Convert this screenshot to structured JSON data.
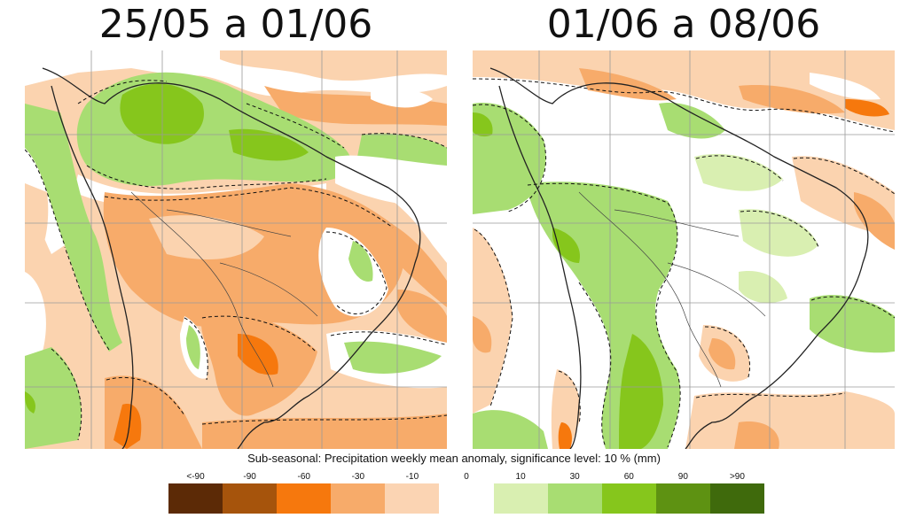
{
  "panels": [
    {
      "title": "25/05 a 01/06"
    },
    {
      "title": "01/06 a 08/06"
    }
  ],
  "legend": {
    "title": "Sub-seasonal: Precipitation weekly mean anomaly, significance level: 10 % (mm)",
    "ticks": [
      "<-90",
      "-90",
      "-60",
      "-30",
      "-10",
      "0",
      "10",
      "30",
      "60",
      "90",
      ">90"
    ],
    "colors": [
      "#5c2a06",
      "#a6540c",
      "#f6780d",
      "#f7ab6a",
      "#fbd4b3",
      "#ffffff",
      "#d9efb1",
      "#a8dd72",
      "#86c61c",
      "#5e9212",
      "#3f6a0c"
    ]
  },
  "colors": {
    "dry_moderate": "#f7ab6a",
    "dry_light": "#fbd3af",
    "dry_strong": "#f6780d",
    "wet_light": "#d9efb1",
    "wet_moderate": "#a8dd72",
    "wet_strong": "#86c61c",
    "neutral": "#ffffff"
  }
}
